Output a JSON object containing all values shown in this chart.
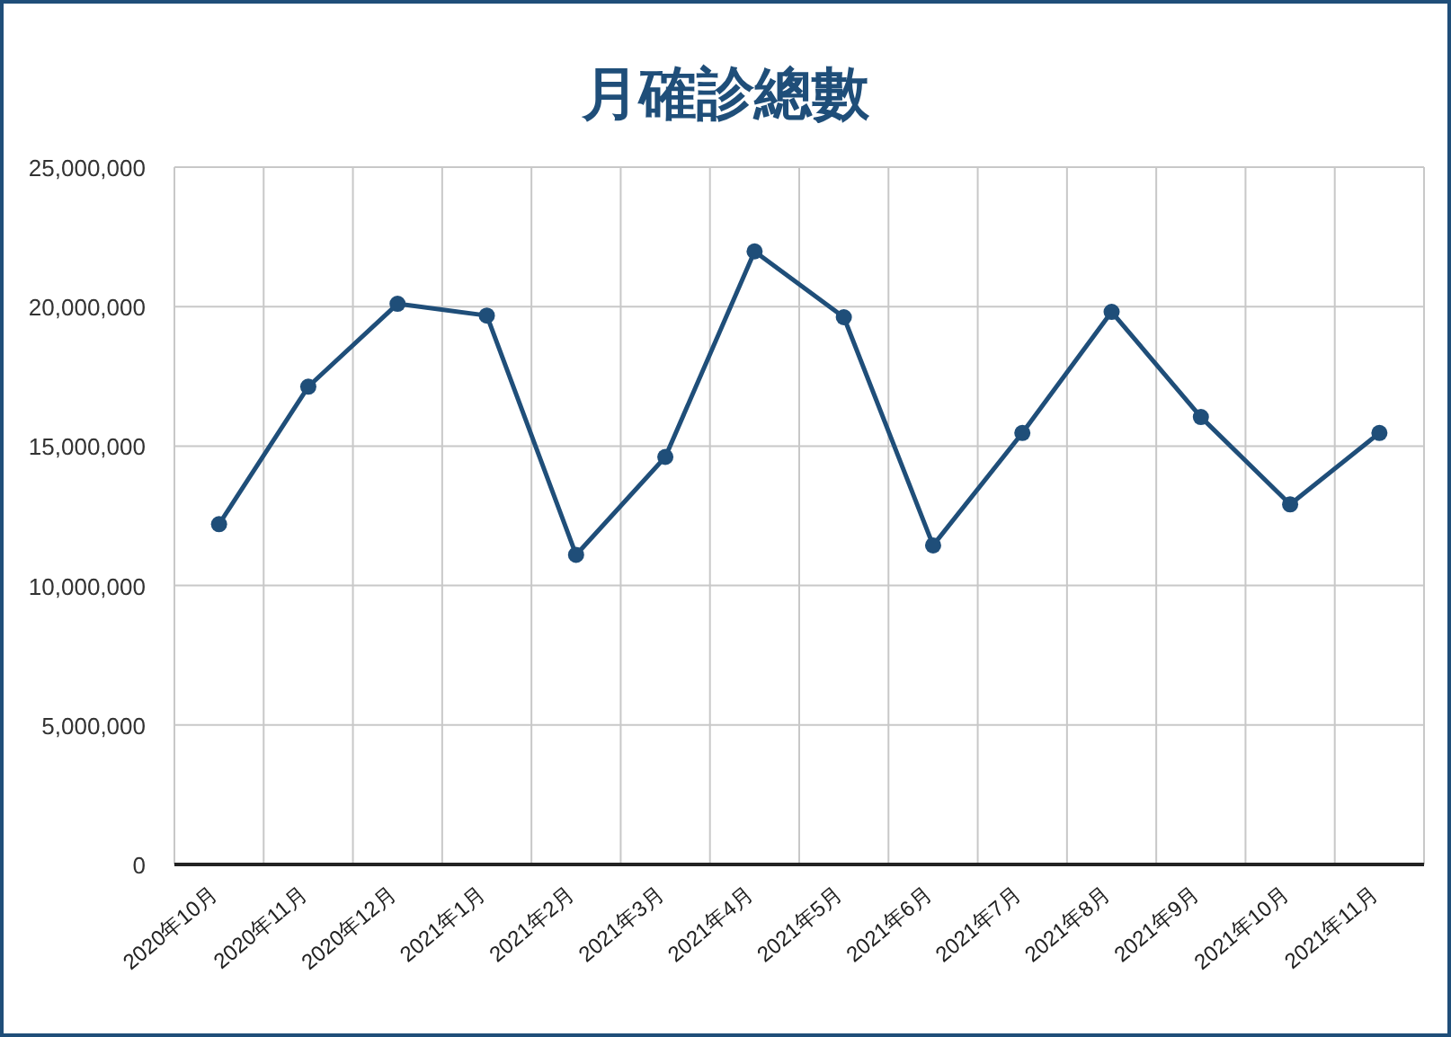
{
  "chart_data": {
    "type": "line",
    "title": "月確診總數",
    "categories": [
      "2020年10月",
      "2020年11月",
      "2020年12月",
      "2021年1月",
      "2021年2月",
      "2021年3月",
      "2021年4月",
      "2021年5月",
      "2021年6月",
      "2021年7月",
      "2021年8月",
      "2021年9月",
      "2021年10月",
      "2021年11月"
    ],
    "series": [
      {
        "color": "#1f4e79",
        "values": [
          12200000,
          17130000,
          20100000,
          19680000,
          11100000,
          14610000,
          21980000,
          19620000,
          11440000,
          15470000,
          19810000,
          16040000,
          12910000,
          15470000
        ]
      }
    ],
    "ylim": [
      0,
      25000000
    ],
    "yticks": [
      {
        "value": 0,
        "label": "0"
      },
      {
        "value": 5000000,
        "label": "5,000,000"
      },
      {
        "value": 10000000,
        "label": "10,000,000"
      },
      {
        "value": 15000000,
        "label": "15,000,000"
      },
      {
        "value": 20000000,
        "label": "20,000,000"
      },
      {
        "value": 25000000,
        "label": "25,000,000"
      }
    ],
    "grid": true,
    "marker": "circle",
    "line_style": "solid"
  }
}
